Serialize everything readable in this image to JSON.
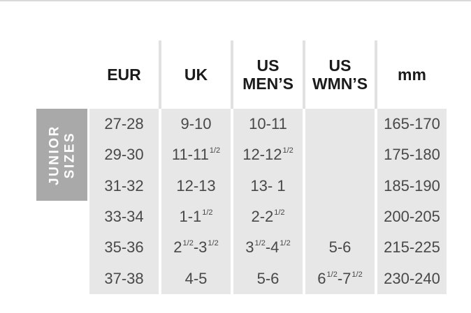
{
  "chart_data": {
    "type": "table",
    "title": "JUNIOR SIZES",
    "columns": [
      "EUR",
      "UK",
      "US MEN’S",
      "US WMN’S",
      "mm"
    ],
    "rows": [
      [
        "27-28",
        "9-10",
        "10-11",
        "",
        "165-170"
      ],
      [
        "29-30",
        "11-11½",
        "12-12½",
        "",
        "175-180"
      ],
      [
        "31-32",
        "12-13",
        "13- 1",
        "",
        "185-190"
      ],
      [
        "33-34",
        "1-1½",
        "2-2½",
        "",
        "200-205"
      ],
      [
        "35-36",
        "2½-3½",
        "3½-4½",
        "5-6",
        "215-225"
      ],
      [
        "37-38",
        "4-5",
        "5-6",
        "6½-7½",
        "230-240"
      ]
    ]
  },
  "side_label": {
    "line1": "JUNIOR",
    "line2": "SIZES"
  },
  "colors": {
    "side_label_bg": "#a9a9a9",
    "side_label_text": "#ffffff",
    "body_cell_bg": "#e7e7e7",
    "body_text": "#484848",
    "header_text": "#1b1b1b",
    "header_divider": "#e1e1e1",
    "top_rule": "#d9d9d9"
  }
}
